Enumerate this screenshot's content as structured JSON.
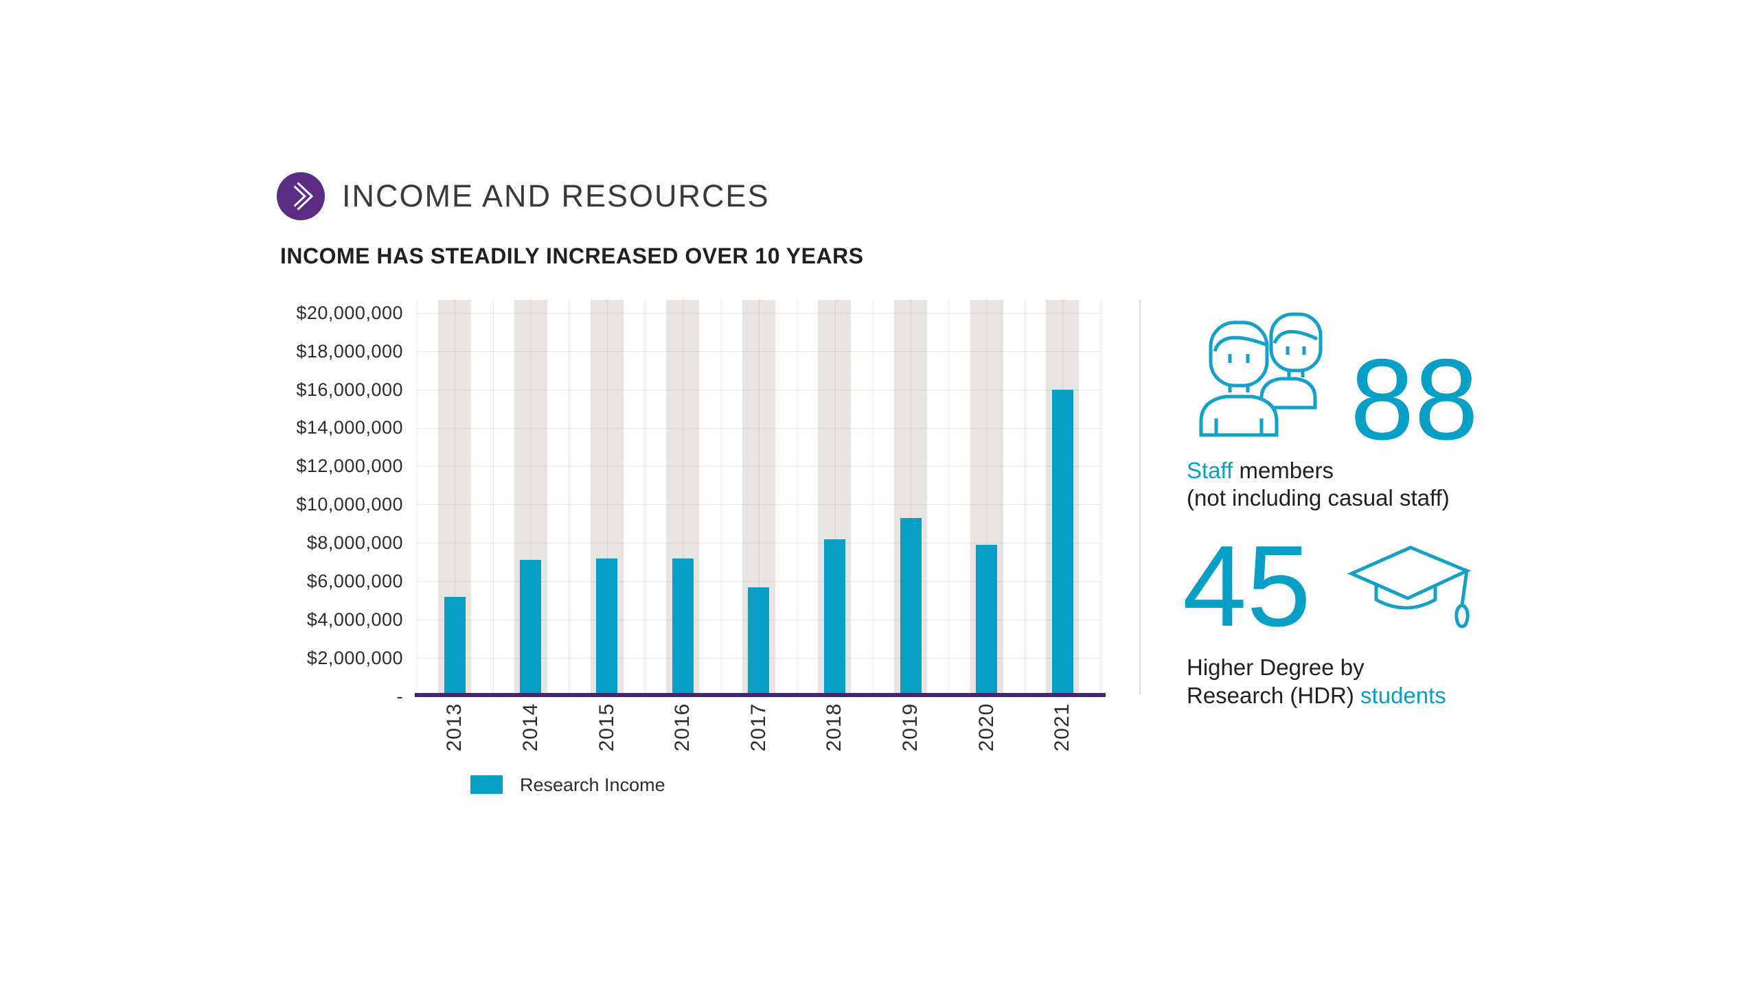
{
  "header": {
    "title": "INCOME AND RESOURCES"
  },
  "chart_data": {
    "type": "bar",
    "title": "INCOME HAS STEADILY INCREASED OVER 10 YEARS",
    "categories": [
      "2013",
      "2014",
      "2015",
      "2016",
      "2017",
      "2018",
      "2019",
      "2020",
      "2021"
    ],
    "series": [
      {
        "name": "Research Income",
        "values": [
          5200000,
          7100000,
          7200000,
          7200000,
          5700000,
          8200000,
          9300000,
          7900000,
          16000000
        ]
      }
    ],
    "xlabel": "",
    "ylabel": "",
    "ylim": [
      0,
      20000000
    ],
    "ytick_step": 2000000,
    "y_tick_labels": [
      "$20,000,000",
      "$18,000,000",
      "$16,000,000",
      "$14,000,000",
      "$12,000,000",
      "$10,000,000",
      "$8,000,000",
      "$6,000,000",
      "$4,000,000",
      "$2,000,000",
      "-"
    ],
    "grid": true,
    "legend_position": "bottom",
    "bar_color": "#079fc5",
    "column_background_color": "#e7e4e1"
  },
  "stats": {
    "staff": {
      "value": "88",
      "label_highlight": "Staff",
      "label_rest": " members",
      "note": "(not including casual staff)",
      "icon": "people-icon"
    },
    "hdr": {
      "value": "45",
      "line1": "Higher Degree by",
      "line2_prefix": "Research (HDR) ",
      "line2_highlight": "students",
      "icon": "graduation-cap-icon"
    }
  },
  "colors": {
    "accent_teal": "#079fc5",
    "badge_purple": "#5b2c84",
    "axis_purple": "#45276f",
    "column_gray": "#e7e4e1",
    "text_dark": "#231f20",
    "divider_gray": "#dbdbdb"
  }
}
